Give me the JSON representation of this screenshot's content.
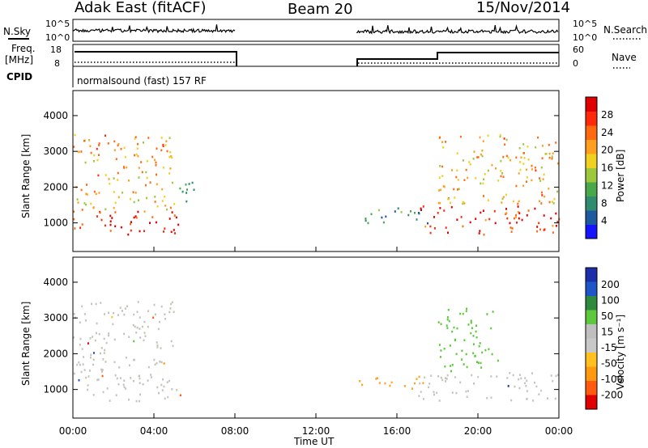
{
  "header": {
    "title": "Adak East (fitACF)",
    "beam": "Beam 20",
    "date": "15/Nov/2014"
  },
  "panels": {
    "nsky_label": "N.Sky",
    "nsky_ticks": [
      "10^5",
      "10^0"
    ],
    "nsearch_label": "N.Search",
    "nsearch_ticks": [
      "10^5",
      "10^0"
    ],
    "freq_label": "Freq.",
    "freq_unit": "[MHz]",
    "freq_ticks": [
      "18",
      "8"
    ],
    "nave_label": "Nave",
    "nave_ticks": [
      "60",
      "0"
    ],
    "cpid_label": "CPID",
    "cpid_text": "normalsound (fast) 157 RF"
  },
  "colors": {
    "power_scale": [
      "#1414ff",
      "#1e5aa0",
      "#2f8c6e",
      "#49a84a",
      "#9bc83c",
      "#f0d020",
      "#ffa020",
      "#ff6a10",
      "#ff2a0a",
      "#e00000"
    ],
    "velocity_scale": [
      "#1d2fa8",
      "#1f55c8",
      "#2e8a3c",
      "#5cc83c",
      "#bfbfbf",
      "#c8c8c8",
      "#ffc020",
      "#ff9a10",
      "#ff5a10",
      "#e00000"
    ]
  },
  "chart_data": [
    {
      "type": "heatmap",
      "name": "power",
      "ylabel": "Slant Range [km]",
      "yticks": [
        "1000",
        "2000",
        "3000",
        "4000"
      ],
      "ylim": [
        200,
        4700
      ],
      "xlim": [
        0,
        24
      ],
      "colorbar_label": "Power [dB]",
      "colorbar_ticks": [
        "4",
        "8",
        "12",
        "16",
        "20",
        "24",
        "28"
      ],
      "clim": [
        0,
        32
      ],
      "data_gap_hours": [
        8.0,
        14.0
      ],
      "regions": [
        {
          "t": [
            0.0,
            5.5
          ],
          "r": [
            700,
            1400
          ],
          "value": 28
        },
        {
          "t": [
            0.0,
            5.0
          ],
          "r": [
            1400,
            3500
          ],
          "value": 20
        },
        {
          "t": [
            5.0,
            6.0
          ],
          "r": [
            1500,
            2300
          ],
          "value": 10
        },
        {
          "t": [
            14.0,
            17.5
          ],
          "r": [
            1000,
            1450
          ],
          "value": 10
        },
        {
          "t": [
            17.0,
            24.0
          ],
          "r": [
            700,
            1500
          ],
          "value": 28
        },
        {
          "t": [
            18.0,
            24.0
          ],
          "r": [
            1500,
            3500
          ],
          "value": 20
        }
      ]
    },
    {
      "type": "heatmap",
      "name": "velocity",
      "ylabel": "Slant Range [km]",
      "yticks": [
        "1000",
        "2000",
        "3000",
        "4000"
      ],
      "ylim": [
        200,
        4700
      ],
      "xlim": [
        0,
        24
      ],
      "xlabel": "Time UT",
      "xticks": [
        "00:00",
        "04:00",
        "08:00",
        "12:00",
        "16:00",
        "20:00",
        "00:00"
      ],
      "colorbar_label": "Velocity [m s⁻¹]",
      "colorbar_ticks": [
        "200",
        "100",
        "50",
        "15",
        "-15",
        "-50",
        "-100",
        "-200"
      ],
      "clim": [
        -250,
        250
      ],
      "data_gap_hours": [
        8.0,
        14.0
      ],
      "regions": [
        {
          "t": [
            0.0,
            5.5
          ],
          "r": [
            700,
            1500
          ],
          "value": 0
        },
        {
          "t": [
            0.0,
            5.0
          ],
          "r": [
            1500,
            3500
          ],
          "value": 0
        },
        {
          "t": [
            14.0,
            17.5
          ],
          "r": [
            1050,
            1400
          ],
          "value": -60
        },
        {
          "t": [
            17.0,
            24.0
          ],
          "r": [
            700,
            1500
          ],
          "value": 0
        },
        {
          "t": [
            18.0,
            21.0
          ],
          "r": [
            1500,
            3300
          ],
          "value": 60
        }
      ]
    }
  ]
}
